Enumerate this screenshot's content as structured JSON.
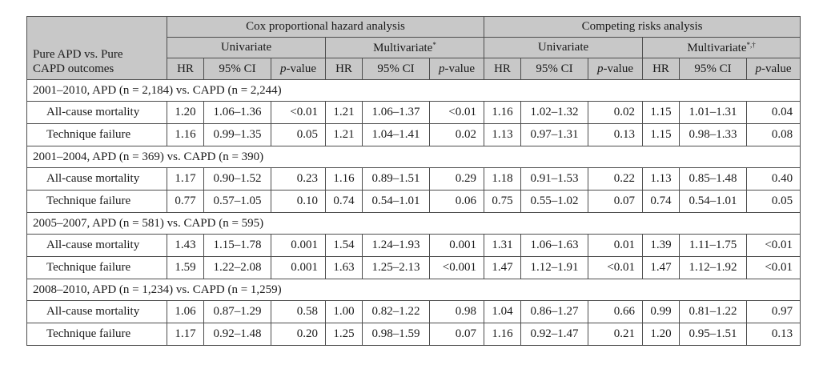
{
  "header": {
    "outcome_line1": "Pure APD vs. Pure",
    "outcome_line2": "CAPD outcomes",
    "cox": "Cox proportional hazard analysis",
    "competing": "Competing risks analysis",
    "univariate": "Univariate",
    "multivariate": "Multivariate",
    "multivariate_cox_mark": "*",
    "multivariate_comp_mark": "*,†",
    "hr": "HR",
    "ci": "95% CI",
    "p_italic": "p",
    "p_rest": "-value"
  },
  "groups": [
    {
      "title": "2001–2010, APD (n = 2,184) vs. CAPD (n = 2,244)",
      "rows": [
        {
          "label": "All-cause mortality",
          "cells": [
            "1.20",
            "1.06–1.36",
            "<0.01",
            "1.21",
            "1.06–1.37",
            "<0.01",
            "1.16",
            "1.02–1.32",
            "0.02",
            "1.15",
            "1.01–1.31",
            "0.04"
          ]
        },
        {
          "label": "Technique failure",
          "cells": [
            "1.16",
            "0.99–1.35",
            "0.05",
            "1.21",
            "1.04–1.41",
            "0.02",
            "1.13",
            "0.97–1.31",
            "0.13",
            "1.15",
            "0.98–1.33",
            "0.08"
          ]
        }
      ]
    },
    {
      "title": "2001–2004, APD (n = 369) vs. CAPD (n = 390)",
      "rows": [
        {
          "label": "All-cause mortality",
          "cells": [
            "1.17",
            "0.90–1.52",
            "0.23",
            "1.16",
            "0.89–1.51",
            "0.29",
            "1.18",
            "0.91–1.53",
            "0.22",
            "1.13",
            "0.85–1.48",
            "0.40"
          ]
        },
        {
          "label": "Technique failure",
          "cells": [
            "0.77",
            "0.57–1.05",
            "0.10",
            "0.74",
            "0.54–1.01",
            "0.06",
            "0.75",
            "0.55–1.02",
            "0.07",
            "0.74",
            "0.54–1.01",
            "0.05"
          ]
        }
      ]
    },
    {
      "title": "2005–2007, APD (n = 581) vs. CAPD (n = 595)",
      "rows": [
        {
          "label": "All-cause mortality",
          "cells": [
            "1.43",
            "1.15–1.78",
            "0.001",
            "1.54",
            "1.24–1.93",
            "0.001",
            "1.31",
            "1.06–1.63",
            "0.01",
            "1.39",
            "1.11–1.75",
            "<0.01"
          ]
        },
        {
          "label": "Technique failure",
          "cells": [
            "1.59",
            "1.22–2.08",
            "0.001",
            "1.63",
            "1.25–2.13",
            "<0.001",
            "1.47",
            "1.12–1.91",
            "<0.01",
            "1.47",
            "1.12–1.92",
            "<0.01"
          ]
        }
      ]
    },
    {
      "title": "2008–2010, APD (n = 1,234) vs. CAPD (n = 1,259)",
      "rows": [
        {
          "label": "All-cause mortality",
          "cells": [
            "1.06",
            "0.87–1.29",
            "0.58",
            "1.00",
            "0.82–1.22",
            "0.98",
            "1.04",
            "0.86–1.27",
            "0.66",
            "0.99",
            "0.81–1.22",
            "0.97"
          ]
        },
        {
          "label": "Technique failure",
          "cells": [
            "1.17",
            "0.92–1.48",
            "0.20",
            "1.25",
            "0.98–1.59",
            "0.07",
            "1.16",
            "0.92–1.47",
            "0.21",
            "1.20",
            "0.95–1.51",
            "0.13"
          ]
        }
      ]
    }
  ]
}
